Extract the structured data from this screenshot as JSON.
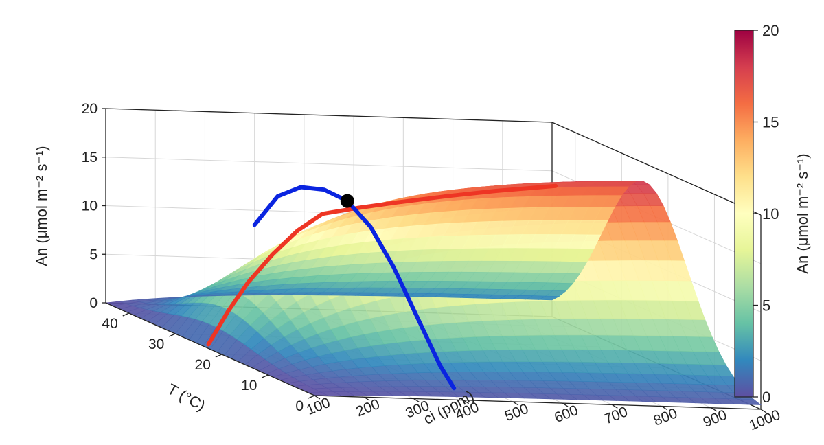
{
  "chart_data": {
    "type": "surface3d",
    "title": "",
    "xlabel": "ci (ppm)",
    "ylabel": "T (°C)",
    "zlabel": "An (μmol m⁻² s⁻¹)",
    "x_ticks": [
      100,
      200,
      300,
      400,
      500,
      600,
      700,
      800,
      900,
      1000
    ],
    "y_ticks": [
      0,
      10,
      20,
      30,
      40
    ],
    "z_ticks": [
      0,
      5,
      10,
      15,
      20
    ],
    "xlim": [
      100,
      1000
    ],
    "ylim": [
      0,
      45
    ],
    "zlim": [
      0,
      20
    ],
    "colormap": "Spectral (reversed)",
    "colors": [
      "#5e4fa2",
      "#3288bd",
      "#66c2a5",
      "#abdda4",
      "#e6f598",
      "#ffffbf",
      "#fee08b",
      "#fdae61",
      "#f46d43",
      "#d53e4f",
      "#9e0142"
    ],
    "grid": true,
    "colorbar": {
      "label": "An (μmol m⁻² s⁻¹)",
      "ticks": [
        0,
        5,
        10,
        15,
        20
      ],
      "range": [
        0,
        20
      ],
      "placement": "right"
    },
    "series": [
      {
        "name": "",
        "color": "#ee3524",
        "points": [
          {
            "ci": 120,
            "T": 25,
            "An": 0
          },
          {
            "ci": 160,
            "T": 25,
            "An": 3.5
          },
          {
            "ci": 200,
            "T": 25,
            "An": 6.5
          },
          {
            "ci": 250,
            "T": 25,
            "An": 9.5
          },
          {
            "ci": 300,
            "T": 25,
            "An": 12
          },
          {
            "ci": 350,
            "T": 25,
            "An": 13.8
          },
          {
            "ci": 420,
            "T": 25,
            "An": 14.5
          },
          {
            "ci": 500,
            "T": 25,
            "An": 15.2
          },
          {
            "ci": 600,
            "T": 25,
            "An": 16
          },
          {
            "ci": 700,
            "T": 25,
            "An": 16.7
          },
          {
            "ci": 820,
            "T": 25,
            "An": 17.4
          }
        ]
      },
      {
        "name": "",
        "color": "#0a24e0",
        "points": [
          {
            "ci": 400,
            "T": 45,
            "An": 8.5
          },
          {
            "ci": 400,
            "T": 40,
            "An": 12.5
          },
          {
            "ci": 400,
            "T": 35,
            "An": 14.5
          },
          {
            "ci": 400,
            "T": 30,
            "An": 15.3
          },
          {
            "ci": 400,
            "T": 25,
            "An": 15.2
          },
          {
            "ci": 400,
            "T": 20,
            "An": 13.6
          },
          {
            "ci": 400,
            "T": 15,
            "An": 10.5
          },
          {
            "ci": 400,
            "T": 10,
            "An": 6.5
          },
          {
            "ci": 400,
            "T": 5,
            "An": 2.5
          },
          {
            "ci": 400,
            "T": 2,
            "An": 0.8
          }
        ]
      }
    ],
    "annotations": [
      {
        "type": "marker",
        "ci": 400,
        "T": 25,
        "An": 15.2,
        "color": "#000000"
      }
    ]
  }
}
